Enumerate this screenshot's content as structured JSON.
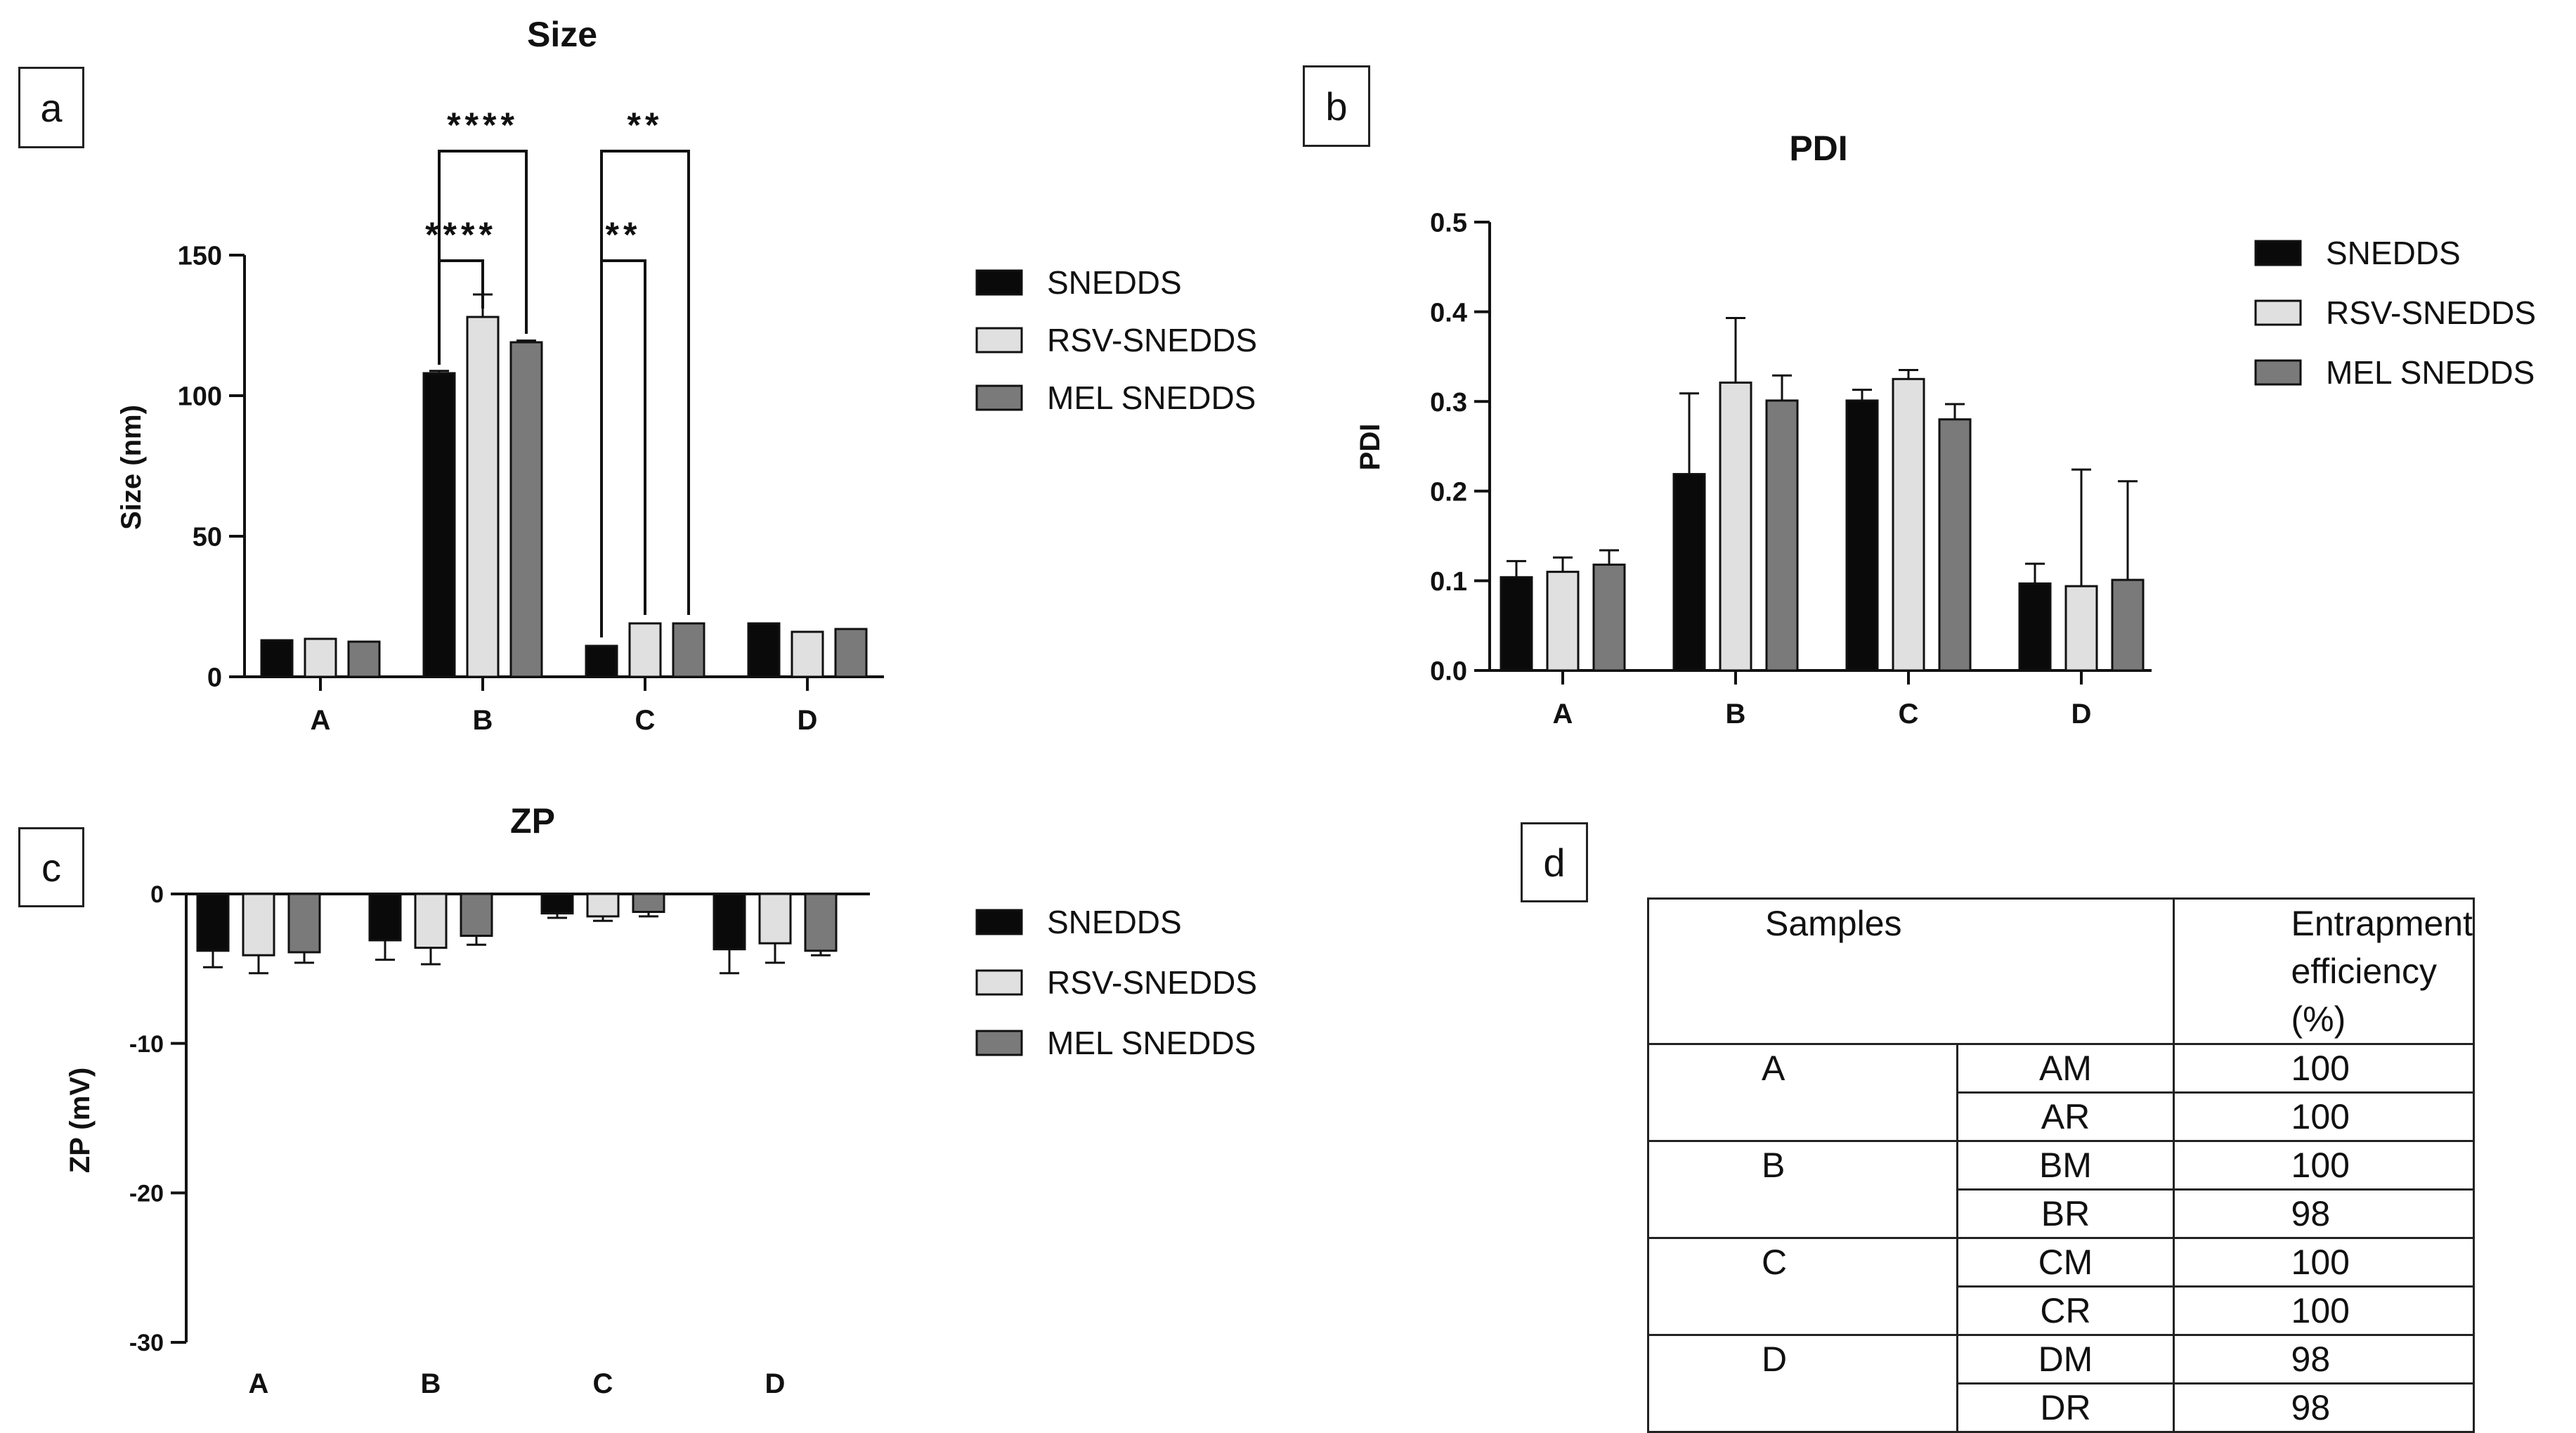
{
  "colors": {
    "snedds": "#0a0a0a",
    "rsv": "#e0e0e0",
    "mel": "#7a7a7a"
  },
  "legend": [
    "SNEDDS",
    "RSV-SNEDDS",
    "MEL SNEDDS"
  ],
  "panels": {
    "a": "a",
    "b": "b",
    "c": "c",
    "d": "d"
  },
  "chart_data": [
    {
      "id": "size",
      "type": "bar",
      "title": "Size",
      "xlabel": "",
      "ylabel": "Size (nm)",
      "ylim": [
        0,
        150
      ],
      "yticks": [
        0,
        50,
        100,
        150
      ],
      "categories": [
        "A",
        "B",
        "C",
        "D"
      ],
      "series": [
        {
          "name": "SNEDDS",
          "values": [
            13,
            108,
            11,
            19
          ],
          "errors": [
            0,
            0.8,
            0,
            0
          ]
        },
        {
          "name": "RSV-SNEDDS",
          "values": [
            13.5,
            128,
            19,
            16
          ],
          "errors": [
            0,
            8,
            0,
            0
          ]
        },
        {
          "name": "MEL SNEDDS",
          "values": [
            12.5,
            119,
            19,
            17
          ],
          "errors": [
            0,
            0.6,
            0,
            0
          ]
        }
      ],
      "significance": [
        {
          "category": "B",
          "from": "SNEDDS",
          "to": "RSV-SNEDDS",
          "label": "****",
          "level": 148
        },
        {
          "category": "B",
          "from": "SNEDDS",
          "to": "MEL SNEDDS",
          "label": "****",
          "level": 187
        },
        {
          "category": "C",
          "from": "SNEDDS",
          "to": "RSV-SNEDDS",
          "label": "**",
          "level": 148
        },
        {
          "category": "C",
          "from": "SNEDDS",
          "to": "MEL SNEDDS",
          "label": "**",
          "level": 187
        }
      ]
    },
    {
      "id": "pdi",
      "type": "bar",
      "title": "PDI",
      "xlabel": "",
      "ylabel": "PDI",
      "ylim": [
        0,
        0.5
      ],
      "yticks": [
        "0.0",
        "0.1",
        "0.2",
        "0.3",
        "0.4",
        "0.5"
      ],
      "categories": [
        "A",
        "B",
        "C",
        "D"
      ],
      "series": [
        {
          "name": "SNEDDS",
          "values": [
            0.104,
            0.219,
            0.301,
            0.097
          ],
          "errors": [
            0.018,
            0.09,
            0.012,
            0.022
          ]
        },
        {
          "name": "RSV-SNEDDS",
          "values": [
            0.11,
            0.321,
            0.325,
            0.094
          ],
          "errors": [
            0.016,
            0.072,
            0.01,
            0.13
          ]
        },
        {
          "name": "MEL SNEDDS",
          "values": [
            0.118,
            0.301,
            0.28,
            0.101
          ],
          "errors": [
            0.016,
            0.028,
            0.017,
            0.11
          ]
        }
      ]
    },
    {
      "id": "zp",
      "type": "bar",
      "title": "ZP",
      "xlabel": "",
      "ylabel": "ZP (mV)",
      "ylim": [
        -30,
        0
      ],
      "yticks": [
        -30,
        -20,
        -10,
        0
      ],
      "categories": [
        "A",
        "B",
        "C",
        "D"
      ],
      "series": [
        {
          "name": "SNEDDS",
          "values": [
            -3.8,
            -3.1,
            -1.3,
            -3.7
          ],
          "errors": [
            1.1,
            1.3,
            0.3,
            1.6
          ]
        },
        {
          "name": "RSV-SNEDDS",
          "values": [
            -4.1,
            -3.6,
            -1.5,
            -3.3
          ],
          "errors": [
            1.2,
            1.1,
            0.3,
            1.3
          ]
        },
        {
          "name": "MEL SNEDDS",
          "values": [
            -3.9,
            -2.8,
            -1.2,
            -3.8
          ],
          "errors": [
            0.7,
            0.6,
            0.3,
            0.3
          ]
        }
      ]
    }
  ],
  "table": {
    "header": {
      "samples": "Samples",
      "ee_line1": "Entrapment",
      "ee_line2": "efficiency (%)"
    },
    "groups": [
      {
        "group": "A",
        "rows": [
          {
            "code": "AM",
            "value": "100"
          },
          {
            "code": "AR",
            "value": "100"
          }
        ]
      },
      {
        "group": "B",
        "rows": [
          {
            "code": "BM",
            "value": "100"
          },
          {
            "code": "BR",
            "value": "98"
          }
        ]
      },
      {
        "group": "C",
        "rows": [
          {
            "code": "CM",
            "value": "100"
          },
          {
            "code": "CR",
            "value": "100"
          }
        ]
      },
      {
        "group": "D",
        "rows": [
          {
            "code": "DM",
            "value": "98"
          },
          {
            "code": "DR",
            "value": "98"
          }
        ]
      }
    ]
  }
}
